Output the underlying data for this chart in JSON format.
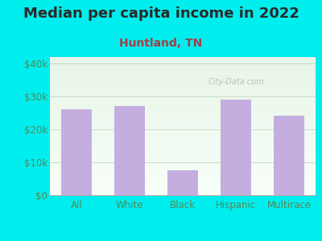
{
  "title": "Median per capita income in 2022",
  "subtitle": "Huntland, TN",
  "categories": [
    "All",
    "White",
    "Black",
    "Hispanic",
    "Multirace"
  ],
  "values": [
    26000,
    27000,
    7500,
    29000,
    24000
  ],
  "bar_color": "#c4aee0",
  "background_outer": "#00eeee",
  "background_inner_grad_top": "#e8f5e8",
  "background_inner_grad_bottom": "#f8fff8",
  "title_color": "#2a2a2a",
  "subtitle_color": "#a0404a",
  "tick_label_color": "#558855",
  "grid_color": "#c8dcc8",
  "ylim": [
    0,
    42000
  ],
  "yticks": [
    0,
    10000,
    20000,
    30000,
    40000
  ],
  "ytick_labels": [
    "$0",
    "$10k",
    "$20k",
    "$30k",
    "$40k"
  ],
  "watermark": "City-Data.com",
  "title_fontsize": 13,
  "subtitle_fontsize": 10,
  "tick_fontsize": 8.5
}
